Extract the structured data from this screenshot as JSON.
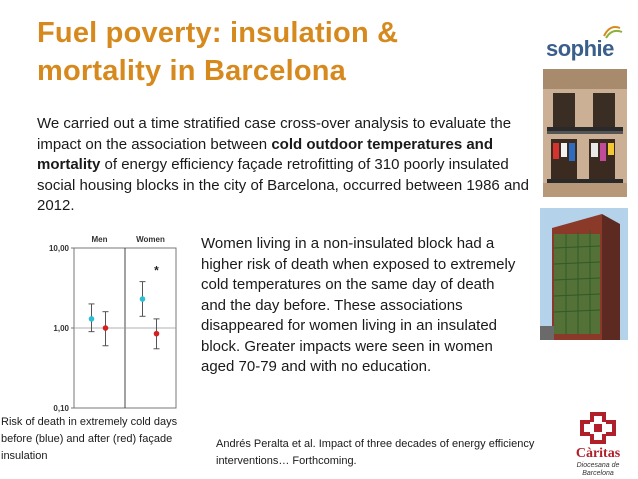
{
  "slide": {
    "title": "Fuel poverty: insulation & mortality in Barcelona",
    "intro": {
      "part1": "We carried out a time stratified case cross-over analysis to evaluate the impact on the association between ",
      "bold1": "cold outdoor temperatures and mortality",
      "part2": " of energy efficiency façade retrofitting of 310 poorly insulated social housing blocks in the city of Barcelona, occurred between 1986 and 2012."
    },
    "findings": "Women living in a non-insulated block had a higher risk of death when exposed to extremely cold temperatures on the same day of death and the day before. These associations disappeared for women living in an insulated block. Greater impacts were seen in women aged 70-79 and with no education.",
    "caption": "Risk of death in extremely cold days before (blue) and after (red) façade insulation",
    "reference": "Andrés Peralta et al. Impact of three decades of energy efficiency interventions… Forthcoming."
  },
  "logos": {
    "sophie": "sophie",
    "caritas_name": "Càritas",
    "caritas_sub": "Diocesana de Barcelona"
  },
  "colors": {
    "title": "#d68a1e",
    "before": "#2bbfd6",
    "after": "#d42020"
  },
  "chart_data": {
    "type": "scatter",
    "categories": [
      "Men",
      "Women"
    ],
    "scale": "log",
    "ylim": [
      0.1,
      10
    ],
    "y_tick_labels": [
      "10,00",
      "1,00",
      "0,10"
    ],
    "y_ticks": [
      10,
      1,
      0.1
    ],
    "series": [
      {
        "name": "",
        "color": "#2bbfd6",
        "values": [
          1.3,
          2.3
        ],
        "ci_low": [
          0.9,
          1.4
        ],
        "ci_high": [
          2.0,
          3.8
        ]
      },
      {
        "name": "",
        "color": "#d42020",
        "values": [
          1.0,
          0.85
        ],
        "ci_low": [
          0.6,
          0.55
        ],
        "ci_high": [
          1.6,
          1.3
        ]
      }
    ],
    "annotations": [
      {
        "category": "Women",
        "text": "*",
        "y": 5.2
      }
    ]
  }
}
